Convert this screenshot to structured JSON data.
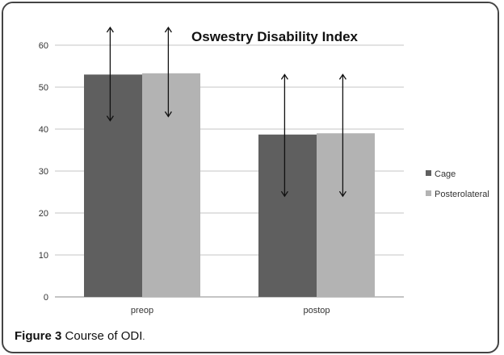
{
  "chart_data": {
    "type": "bar",
    "title": "Oswestry Disability Index",
    "categories": [
      "preop",
      "postop"
    ],
    "series": [
      {
        "name": "Cage",
        "values": [
          53,
          38.7
        ],
        "color": "#5f5f5f",
        "error_range": [
          [
            42,
            66
          ],
          [
            24,
            53
          ]
        ]
      },
      {
        "name": "Posterolateral",
        "values": [
          53.3,
          39
        ],
        "color": "#b3b3b3",
        "error_range": [
          [
            43,
            66
          ],
          [
            24,
            53
          ]
        ]
      }
    ],
    "ylim": [
      0,
      60
    ],
    "yticks": [
      0,
      10,
      20,
      30,
      40,
      50,
      60
    ],
    "grid": true,
    "legend_position": "right",
    "xlabel": "",
    "ylabel": ""
  },
  "caption": {
    "label": "Figure 3",
    "text": "Course of ODI",
    "period": "."
  }
}
